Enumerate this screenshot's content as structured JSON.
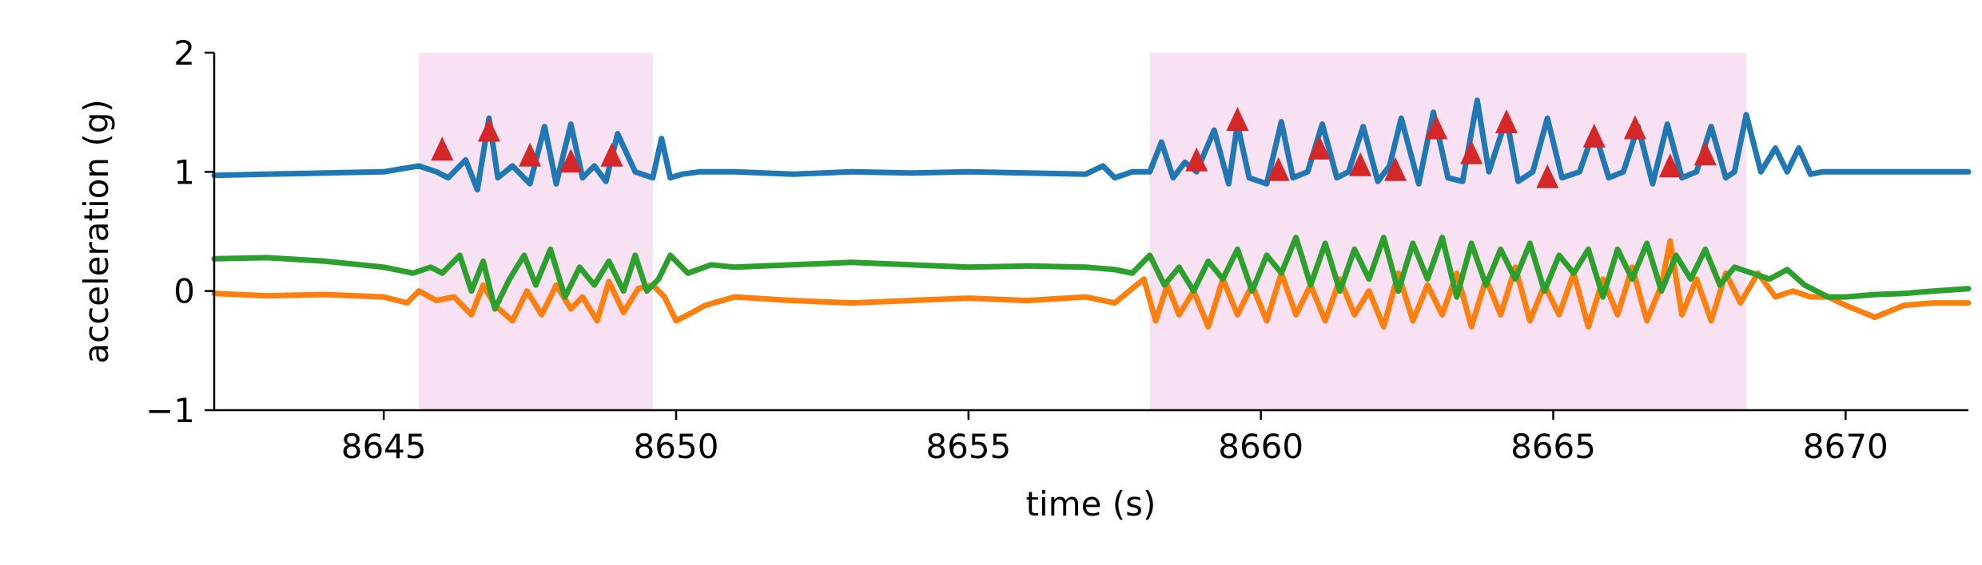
{
  "chart_data": {
    "type": "line",
    "title": "",
    "xlabel": "time (s)",
    "ylabel": "acceleration (g)",
    "xlim": [
      8642.1,
      8672.1
    ],
    "ylim": [
      -1,
      2
    ],
    "xticks": [
      8645,
      8650,
      8655,
      8660,
      8665,
      8670
    ],
    "xtick_labels": [
      "8645",
      "8650",
      "8655",
      "8660",
      "8665",
      "8670"
    ],
    "yticks": [
      2,
      1,
      0,
      -1
    ],
    "ytick_labels": [
      "2",
      "1",
      "0",
      "−1"
    ],
    "grid": false,
    "legend": "none",
    "shaded_regions": [
      {
        "x_start": 8645.6,
        "x_end": 8649.6,
        "color": "#f8e1f2"
      },
      {
        "x_start": 8658.1,
        "x_end": 8668.3,
        "color": "#f8e1f2"
      }
    ],
    "series": [
      {
        "color": "#1f77b4",
        "x": [
          8642.1,
          8643.0,
          8644.0,
          8645.0,
          8645.6,
          8645.9,
          8646.1,
          8646.4,
          8646.6,
          8646.8,
          8646.95,
          8647.2,
          8647.5,
          8647.75,
          8647.95,
          8648.2,
          8648.4,
          8648.6,
          8648.8,
          8649.0,
          8649.3,
          8649.6,
          8649.75,
          8649.9,
          8650.1,
          8650.4,
          8651.0,
          8652.0,
          8653.0,
          8654.0,
          8655.0,
          8656.0,
          8657.0,
          8657.3,
          8657.5,
          8657.8,
          8658.1,
          8658.3,
          8658.5,
          8658.7,
          8658.9,
          8659.2,
          8659.45,
          8659.6,
          8659.8,
          8660.1,
          8660.35,
          8660.55,
          8660.8,
          8661.05,
          8661.3,
          8661.5,
          8661.75,
          8662.0,
          8662.2,
          8662.4,
          8662.7,
          8662.95,
          8663.2,
          8663.45,
          8663.7,
          8663.9,
          8664.2,
          8664.4,
          8664.65,
          8664.9,
          8665.15,
          8665.45,
          8665.7,
          8665.95,
          8666.2,
          8666.45,
          8666.7,
          8666.95,
          8667.2,
          8667.45,
          8667.7,
          8667.95,
          8668.1,
          8668.3,
          8668.55,
          8668.8,
          8669.0,
          8669.2,
          8669.4,
          8669.6,
          8670.0,
          8671.0,
          8672.1
        ],
        "y": [
          0.97,
          0.98,
          0.99,
          1.0,
          1.05,
          1.0,
          0.95,
          1.1,
          0.85,
          1.45,
          0.95,
          1.05,
          0.9,
          1.38,
          0.9,
          1.4,
          0.95,
          1.05,
          0.92,
          1.32,
          1.0,
          0.95,
          1.28,
          0.95,
          0.98,
          1.0,
          1.0,
          0.98,
          1.0,
          0.99,
          1.0,
          0.99,
          0.98,
          1.05,
          0.95,
          1.0,
          1.0,
          1.25,
          0.95,
          1.08,
          1.0,
          1.35,
          0.9,
          1.4,
          0.95,
          0.9,
          1.42,
          0.95,
          1.0,
          1.4,
          0.95,
          1.0,
          1.38,
          0.92,
          1.05,
          1.45,
          0.9,
          1.5,
          0.95,
          0.92,
          1.6,
          1.0,
          1.45,
          0.92,
          1.0,
          1.45,
          0.95,
          1.0,
          1.35,
          0.95,
          1.0,
          1.38,
          0.9,
          1.4,
          0.95,
          1.0,
          1.38,
          0.95,
          1.0,
          1.48,
          1.0,
          1.2,
          1.0,
          1.2,
          0.98,
          1.0,
          1.0,
          1.0,
          1.0
        ]
      },
      {
        "color": "#ff7f0e",
        "x": [
          8642.1,
          8643.0,
          8644.0,
          8645.0,
          8645.4,
          8645.6,
          8645.9,
          8646.2,
          8646.5,
          8646.7,
          8646.9,
          8647.2,
          8647.45,
          8647.7,
          8647.95,
          8648.2,
          8648.4,
          8648.65,
          8648.85,
          8649.1,
          8649.35,
          8649.6,
          8649.8,
          8650.0,
          8650.2,
          8650.5,
          8651.0,
          8652.0,
          8653.0,
          8654.0,
          8655.0,
          8656.0,
          8657.0,
          8657.5,
          8658.0,
          8658.2,
          8658.4,
          8658.6,
          8658.85,
          8659.1,
          8659.35,
          8659.6,
          8659.85,
          8660.1,
          8660.35,
          8660.6,
          8660.85,
          8661.1,
          8661.35,
          8661.6,
          8661.85,
          8662.1,
          8662.35,
          8662.6,
          8662.85,
          8663.1,
          8663.35,
          8663.6,
          8663.85,
          8664.1,
          8664.35,
          8664.6,
          8664.85,
          8665.1,
          8665.35,
          8665.6,
          8665.85,
          8666.1,
          8666.35,
          8666.6,
          8666.85,
          8667.0,
          8667.2,
          8667.45,
          8667.7,
          8667.95,
          8668.2,
          8668.5,
          8668.8,
          8669.1,
          8669.4,
          8669.7,
          8670.0,
          8670.5,
          8671.0,
          8671.5,
          8672.1
        ],
        "y": [
          -0.02,
          -0.04,
          -0.03,
          -0.05,
          -0.1,
          0.0,
          -0.08,
          -0.05,
          -0.2,
          0.05,
          -0.12,
          -0.25,
          0.0,
          -0.2,
          0.05,
          -0.15,
          -0.05,
          -0.25,
          0.08,
          -0.18,
          0.02,
          0.05,
          -0.05,
          -0.25,
          -0.2,
          -0.12,
          -0.05,
          -0.08,
          -0.1,
          -0.08,
          -0.06,
          -0.08,
          -0.05,
          -0.1,
          0.1,
          -0.25,
          0.05,
          -0.2,
          0.0,
          -0.3,
          0.1,
          -0.2,
          0.05,
          -0.25,
          0.15,
          -0.2,
          0.05,
          -0.25,
          0.1,
          -0.2,
          0.0,
          -0.3,
          0.15,
          -0.25,
          0.05,
          -0.2,
          0.15,
          -0.3,
          0.1,
          -0.2,
          0.2,
          -0.25,
          0.05,
          -0.2,
          0.15,
          -0.3,
          0.1,
          -0.2,
          0.2,
          -0.25,
          0.05,
          0.42,
          -0.2,
          0.1,
          -0.25,
          0.15,
          -0.1,
          0.15,
          -0.05,
          0.0,
          -0.05,
          -0.05,
          -0.12,
          -0.22,
          -0.12,
          -0.1,
          -0.1
        ]
      },
      {
        "color": "#2ca02c",
        "x": [
          8642.1,
          8643.0,
          8644.0,
          8645.0,
          8645.5,
          8645.8,
          8646.0,
          8646.3,
          8646.5,
          8646.7,
          8646.9,
          8647.15,
          8647.4,
          8647.6,
          8647.85,
          8648.1,
          8648.35,
          8648.6,
          8648.85,
          8649.1,
          8649.3,
          8649.5,
          8649.7,
          8649.9,
          8650.2,
          8650.6,
          8651.0,
          8652.0,
          8653.0,
          8654.0,
          8655.0,
          8656.0,
          8657.0,
          8657.5,
          8657.8,
          8658.1,
          8658.35,
          8658.6,
          8658.85,
          8659.1,
          8659.35,
          8659.6,
          8659.85,
          8660.1,
          8660.35,
          8660.6,
          8660.85,
          8661.1,
          8661.35,
          8661.6,
          8661.85,
          8662.1,
          8662.35,
          8662.6,
          8662.85,
          8663.1,
          8663.35,
          8663.6,
          8663.85,
          8664.1,
          8664.35,
          8664.6,
          8664.85,
          8665.1,
          8665.35,
          8665.6,
          8665.85,
          8666.1,
          8666.35,
          8666.6,
          8666.85,
          8667.1,
          8667.35,
          8667.6,
          8667.85,
          8668.1,
          8668.4,
          8668.7,
          8669.0,
          8669.3,
          8669.7,
          8670.0,
          8670.5,
          8671.0,
          8671.5,
          8672.1
        ],
        "y": [
          0.27,
          0.28,
          0.25,
          0.2,
          0.15,
          0.2,
          0.15,
          0.3,
          0.0,
          0.25,
          -0.15,
          0.1,
          0.3,
          0.05,
          0.35,
          -0.05,
          0.2,
          0.05,
          0.25,
          0.0,
          0.3,
          0.0,
          0.1,
          0.3,
          0.15,
          0.22,
          0.2,
          0.22,
          0.24,
          0.22,
          0.2,
          0.21,
          0.2,
          0.18,
          0.15,
          0.3,
          0.05,
          0.2,
          0.0,
          0.25,
          0.1,
          0.35,
          0.0,
          0.3,
          0.15,
          0.45,
          0.05,
          0.4,
          0.0,
          0.35,
          0.1,
          0.45,
          0.0,
          0.4,
          0.1,
          0.45,
          -0.05,
          0.4,
          0.05,
          0.35,
          0.1,
          0.4,
          0.0,
          0.3,
          0.15,
          0.35,
          -0.05,
          0.35,
          0.1,
          0.4,
          0.0,
          0.3,
          0.1,
          0.35,
          0.05,
          0.2,
          0.15,
          0.1,
          0.18,
          0.05,
          -0.05,
          -0.05,
          -0.03,
          -0.02,
          0.0,
          0.02
        ]
      }
    ],
    "markers": {
      "shape": "triangle-up",
      "color": "#d62728",
      "points": [
        {
          "x": 8646.0,
          "y": 1.17
        },
        {
          "x": 8646.8,
          "y": 1.33
        },
        {
          "x": 8647.5,
          "y": 1.12
        },
        {
          "x": 8648.2,
          "y": 1.07
        },
        {
          "x": 8648.9,
          "y": 1.12
        },
        {
          "x": 8658.9,
          "y": 1.08
        },
        {
          "x": 8659.6,
          "y": 1.42
        },
        {
          "x": 8660.3,
          "y": 1.0
        },
        {
          "x": 8661.0,
          "y": 1.18
        },
        {
          "x": 8661.7,
          "y": 1.04
        },
        {
          "x": 8662.3,
          "y": 1.0
        },
        {
          "x": 8663.0,
          "y": 1.35
        },
        {
          "x": 8663.6,
          "y": 1.14
        },
        {
          "x": 8664.2,
          "y": 1.4
        },
        {
          "x": 8664.9,
          "y": 0.94
        },
        {
          "x": 8665.7,
          "y": 1.28
        },
        {
          "x": 8666.4,
          "y": 1.35
        },
        {
          "x": 8667.0,
          "y": 1.03
        },
        {
          "x": 8667.6,
          "y": 1.13
        }
      ]
    }
  }
}
